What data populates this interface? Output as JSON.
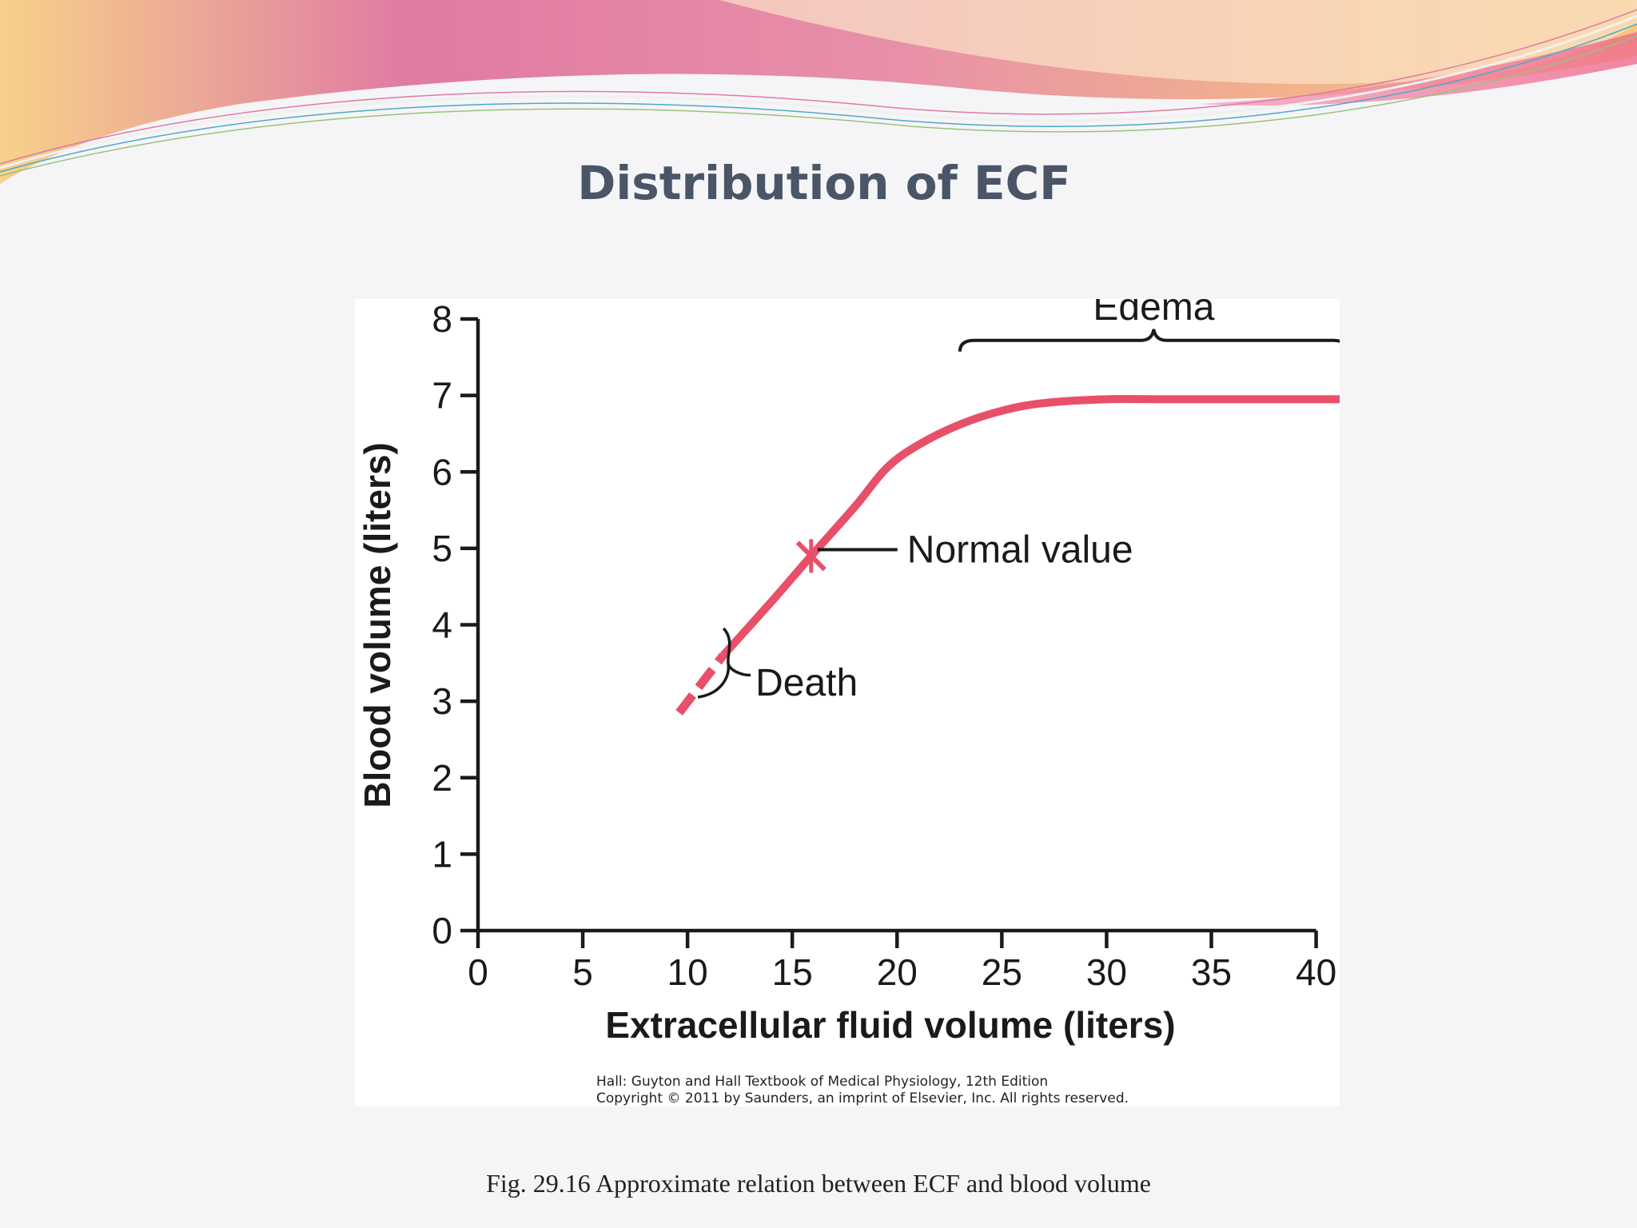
{
  "slide": {
    "title": "Distribution of ECF",
    "caption": "Fig. 29.16  Approximate relation between ECF and blood volume",
    "credit_line1": "Hall: Guyton and Hall Textbook of Medical Physiology, 12th Edition",
    "credit_line2": "Copyright © 2011 by Saunders, an imprint of Elsevier, Inc. All rights reserved."
  },
  "colors": {
    "curve": "#e8506a",
    "axis": "#1a1a1a",
    "title": "#4a5568",
    "banner_pink": "#e07aa3",
    "banner_peach": "#f2b48a",
    "banner_yellow": "#f7d28a"
  },
  "chart_data": {
    "type": "line",
    "title": "",
    "xlabel": "Extracellular fluid volume (liters)",
    "ylabel": "Blood volume (liters)",
    "xlim": [
      0,
      42
    ],
    "ylim": [
      0,
      8
    ],
    "x_ticks": [
      0,
      5,
      10,
      15,
      20,
      25,
      30,
      35,
      40
    ],
    "y_ticks": [
      0,
      1,
      2,
      3,
      4,
      5,
      6,
      7,
      8
    ],
    "grid": false,
    "series": [
      {
        "x": [
          9.6,
          11.7,
          14.0,
          15.9,
          18.0,
          19.5,
          21.0,
          23.0,
          25.0,
          27.0,
          30.0,
          33.0,
          36.0,
          39.0,
          42.0
        ],
        "y": [
          2.85,
          3.6,
          4.3,
          4.9,
          5.55,
          6.05,
          6.35,
          6.62,
          6.8,
          6.9,
          6.95,
          6.95,
          6.95,
          6.95,
          6.95
        ],
        "dashed_until_x": 11.7
      }
    ],
    "annotations": [
      {
        "label": "Normal value",
        "x": 15.9,
        "y": 4.9
      },
      {
        "label": "Death",
        "x": 10.8,
        "y": 3.2
      },
      {
        "label": "Edema",
        "x_from": 23.0,
        "x_to": 41.5
      }
    ]
  }
}
